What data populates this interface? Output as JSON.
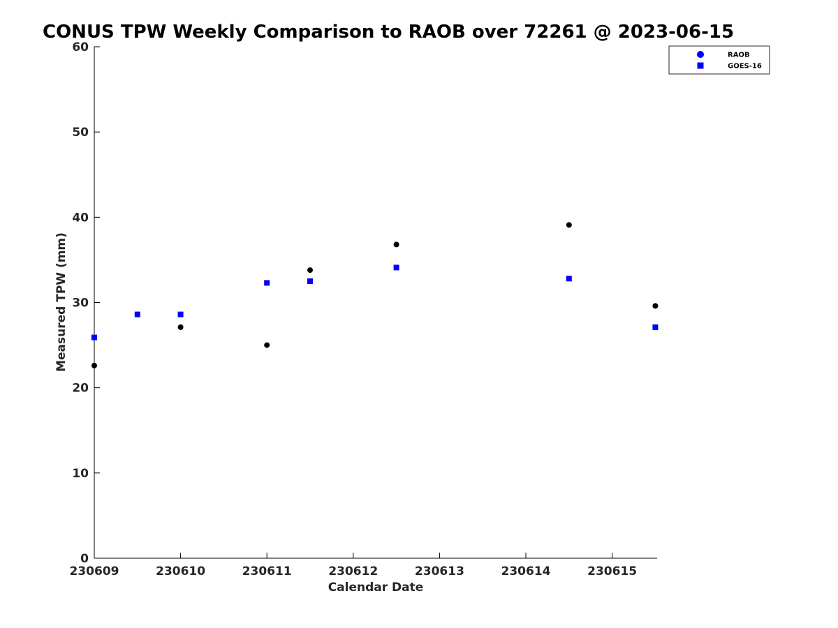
{
  "chart_data": {
    "type": "scatter",
    "title": "CONUS TPW Weekly Comparison to RAOB over 72261 @ 2023-06-15",
    "xlabel": "Calendar Date",
    "ylabel": "Measured TPW (mm)",
    "x_ticks": [
      "230609",
      "230610",
      "230611",
      "230612",
      "230613",
      "230614",
      "230615"
    ],
    "y_ticks": [
      "0",
      "10",
      "20",
      "30",
      "40",
      "50",
      "60"
    ],
    "xlim": [
      "2023-06-09 00:00",
      "2023-06-15 12:30"
    ],
    "ylim": [
      0,
      60
    ],
    "grid": false,
    "legend_position": "top-right",
    "series": [
      {
        "name": "RAOB",
        "marker": "circle",
        "color": "#000000",
        "legend_color": "#0000ff",
        "points": [
          {
            "x": "2023-06-09 00:00",
            "y": 22.6
          },
          {
            "x": "2023-06-09 12:00",
            "y": 28.6
          },
          {
            "x": "2023-06-10 00:00",
            "y": 27.1
          },
          {
            "x": "2023-06-11 00:00",
            "y": 25.0
          },
          {
            "x": "2023-06-11 12:00",
            "y": 33.8
          },
          {
            "x": "2023-06-12 12:00",
            "y": 36.8
          },
          {
            "x": "2023-06-14 12:00",
            "y": 39.1
          },
          {
            "x": "2023-06-15 12:00",
            "y": 29.6
          }
        ]
      },
      {
        "name": "GOES-16",
        "marker": "square",
        "color": "#0000ff",
        "legend_color": "#0000ff",
        "points": [
          {
            "x": "2023-06-09 00:00",
            "y": 25.9
          },
          {
            "x": "2023-06-09 12:00",
            "y": 28.6
          },
          {
            "x": "2023-06-10 00:00",
            "y": 28.6
          },
          {
            "x": "2023-06-11 00:00",
            "y": 32.3
          },
          {
            "x": "2023-06-11 12:00",
            "y": 32.5
          },
          {
            "x": "2023-06-12 12:00",
            "y": 34.1
          },
          {
            "x": "2023-06-14 12:00",
            "y": 32.8
          },
          {
            "x": "2023-06-15 12:00",
            "y": 27.1
          }
        ]
      }
    ]
  }
}
